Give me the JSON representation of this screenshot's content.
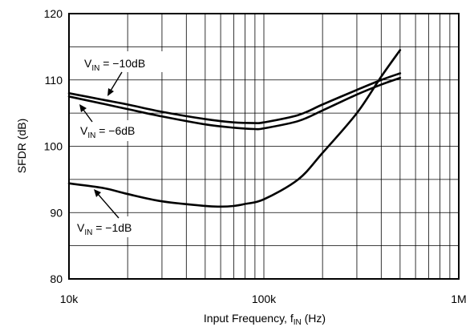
{
  "chart_data": {
    "type": "line",
    "title": "",
    "xlabel": {
      "main": "Input Frequency, f",
      "sub": "IN",
      "unit": " (Hz)"
    },
    "ylabel": "SFDR (dB)",
    "x_scale": "log",
    "xlim": [
      10000,
      1000000
    ],
    "ylim": [
      80,
      120
    ],
    "grid": true,
    "x_ticks": [
      {
        "value": 10000,
        "label": "10k"
      },
      {
        "value": 100000,
        "label": "100k"
      },
      {
        "value": 1000000,
        "label": "1M"
      }
    ],
    "y_ticks": [
      {
        "value": 80,
        "label": "80"
      },
      {
        "value": 90,
        "label": "90"
      },
      {
        "value": 100,
        "label": "100"
      },
      {
        "value": 110,
        "label": "110"
      },
      {
        "value": 120,
        "label": "120"
      }
    ],
    "series": [
      {
        "name": "VIN = -10dB",
        "x": [
          10000,
          15000,
          20000,
          30000,
          50000,
          70000,
          90000,
          100000,
          150000,
          200000,
          300000,
          400000,
          500000
        ],
        "y": [
          108.0,
          107.0,
          106.3,
          105.2,
          104.1,
          103.6,
          103.5,
          103.6,
          104.7,
          106.3,
          108.5,
          110.0,
          111.0
        ]
      },
      {
        "name": "VIN = -6dB",
        "x": [
          10000,
          15000,
          20000,
          30000,
          50000,
          70000,
          90000,
          100000,
          150000,
          200000,
          300000,
          400000,
          500000
        ],
        "y": [
          107.5,
          106.4,
          105.6,
          104.5,
          103.3,
          102.8,
          102.6,
          102.7,
          103.8,
          105.4,
          107.8,
          109.3,
          110.3
        ]
      },
      {
        "name": "VIN = -1dB",
        "x": [
          10000,
          15000,
          20000,
          30000,
          50000,
          60000,
          70000,
          80000,
          100000,
          150000,
          200000,
          300000,
          400000,
          500000
        ],
        "y": [
          94.4,
          93.7,
          92.8,
          91.7,
          91.0,
          90.9,
          91.0,
          91.3,
          92.0,
          95.0,
          99.0,
          105.0,
          110.5,
          114.5
        ]
      }
    ],
    "annotations": [
      {
        "main": "V",
        "sub": "IN",
        "rest": " = −10dB"
      },
      {
        "main": "V",
        "sub": "IN",
        "rest": " = −6dB"
      },
      {
        "main": "V",
        "sub": "IN",
        "rest": " = −1dB"
      }
    ]
  }
}
